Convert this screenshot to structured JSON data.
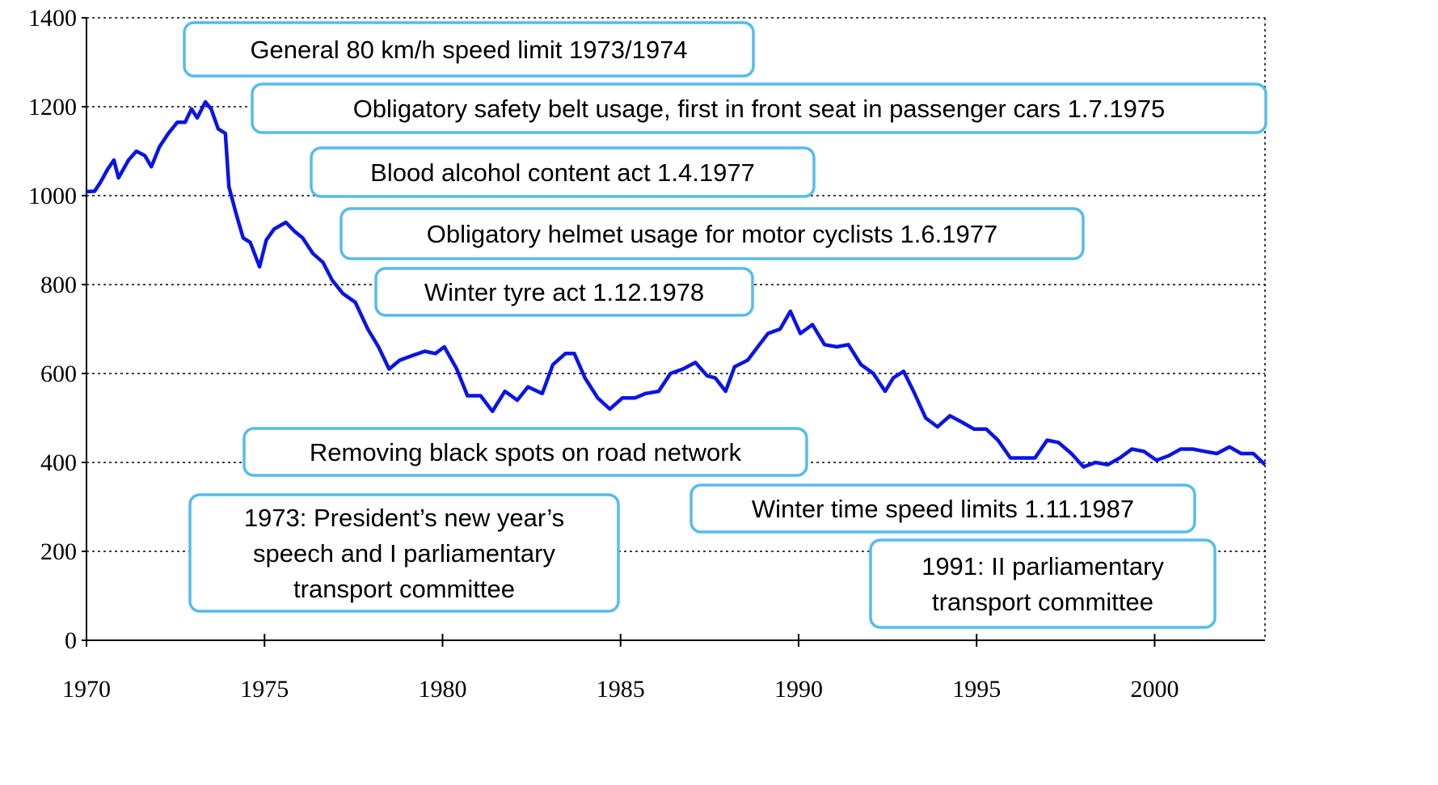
{
  "chart_data": {
    "type": "line",
    "x": [
      1970.0,
      1970.23,
      1970.39,
      1970.6,
      1970.77,
      1970.9,
      1971.18,
      1971.4,
      1971.64,
      1971.82,
      1972.05,
      1972.3,
      1972.55,
      1972.77,
      1972.95,
      1973.11,
      1973.34,
      1973.5,
      1973.7,
      1973.9,
      1974.0,
      1974.2,
      1974.4,
      1974.6,
      1974.86,
      1975.05,
      1975.27,
      1975.6,
      1975.84,
      1976.07,
      1976.36,
      1976.64,
      1976.9,
      1977.2,
      1977.55,
      1977.9,
      1978.2,
      1978.5,
      1978.8,
      1979.14,
      1979.5,
      1979.8,
      1980.05,
      1980.4,
      1980.7,
      1981.07,
      1981.4,
      1981.75,
      1982.1,
      1982.4,
      1982.8,
      1983.1,
      1983.45,
      1983.7,
      1984.0,
      1984.36,
      1984.7,
      1985.05,
      1985.4,
      1985.7,
      1986.07,
      1986.4,
      1986.75,
      1987.1,
      1987.43,
      1987.66,
      1987.95,
      1988.2,
      1988.57,
      1988.9,
      1989.14,
      1989.48,
      1989.77,
      1990.05,
      1990.39,
      1990.73,
      1991.07,
      1991.4,
      1991.75,
      1992.1,
      1992.43,
      1992.66,
      1992.95,
      1993.23,
      1993.57,
      1993.9,
      1994.25,
      1994.6,
      1994.93,
      1995.27,
      1995.6,
      1995.95,
      1996.3,
      1996.64,
      1996.98,
      1997.3,
      1997.66,
      1998.0,
      1998.34,
      1998.68,
      1999.02,
      1999.36,
      1999.7,
      2000.05,
      2000.39,
      2000.73,
      2001.07,
      2001.4,
      2001.75,
      2002.1,
      2002.43,
      2002.77,
      2003.1
    ],
    "series": [
      {
        "color": "#0a14e6",
        "values": [
          1009,
          1010,
          1030,
          1060,
          1080,
          1040,
          1080,
          1100,
          1090,
          1065,
          1110,
          1140,
          1165,
          1165,
          1195,
          1175,
          1211,
          1195,
          1150,
          1140,
          1020,
          960,
          905,
          895,
          840,
          900,
          925,
          940,
          920,
          905,
          870,
          850,
          810,
          780,
          760,
          700,
          660,
          610,
          630,
          640,
          650,
          645,
          660,
          610,
          550,
          550,
          515,
          560,
          540,
          570,
          555,
          620,
          645,
          645,
          590,
          545,
          520,
          545,
          545,
          555,
          560,
          600,
          610,
          625,
          595,
          590,
          560,
          615,
          630,
          665,
          690,
          700,
          740,
          690,
          710,
          665,
          660,
          665,
          620,
          600,
          560,
          590,
          605,
          560,
          500,
          480,
          505,
          490,
          475,
          475,
          450,
          410,
          410,
          410,
          450,
          445,
          420,
          390,
          400,
          395,
          410,
          430,
          425,
          405,
          415,
          430,
          430,
          425,
          420,
          435,
          420,
          420,
          395
        ]
      }
    ],
    "xlim": [
      1970,
      2003.1
    ],
    "xticks": [
      1970,
      1975,
      1980,
      1985,
      1990,
      1995,
      2000
    ],
    "ylim": [
      0,
      1400
    ],
    "yticks": [
      0,
      200,
      400,
      600,
      800,
      1000,
      1200,
      1400
    ],
    "grid": true,
    "annotations": [
      [
        "General 80 km/h speed limit 1973/1974"
      ],
      [
        "Obligatory safety belt usage, first in front seat in passenger cars 1.7.1975"
      ],
      [
        "Blood alcohol content act 1.4.1977"
      ],
      [
        "Obligatory helmet usage for motor cyclists 1.6.1977"
      ],
      [
        "Winter tyre act 1.12.1978"
      ],
      [
        "Removing black spots on road network"
      ],
      [
        "1973: President’s new year’s",
        "speech and I parliamentary",
        "transport committee"
      ],
      [
        "Winter time speed limits 1.11.1987"
      ],
      [
        "1991: II parliamentary",
        "transport committee"
      ]
    ]
  }
}
